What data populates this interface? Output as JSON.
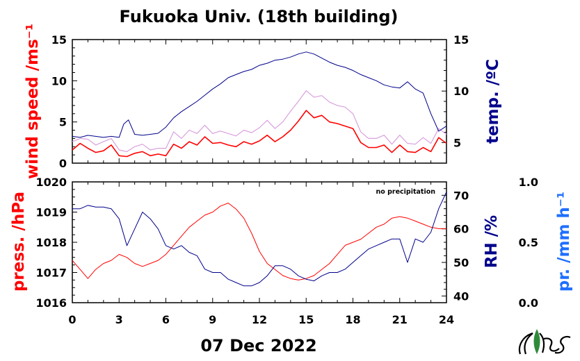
{
  "title": "Fukuoka Univ. (18th building)",
  "date_label": "07 Dec 2022",
  "annotation": "no precipitation",
  "colors": {
    "wind": "#ff0000",
    "gust": "#d9a0dd",
    "temp": "#00008b",
    "pressure": "#ff0000",
    "rh": "#00008b",
    "precip": "#1e6fff"
  },
  "chart_data": [
    {
      "type": "line",
      "panel": "top",
      "xlabel": "",
      "xlim": [
        0,
        24
      ],
      "xticks": [
        "0",
        "3",
        "6",
        "9",
        "12",
        "15",
        "18",
        "21",
        "24"
      ],
      "left_axis": {
        "label": "wind speed /ms⁻¹",
        "ylim": [
          0,
          15
        ],
        "ticks": [
          "0",
          "5",
          "10",
          "15"
        ]
      },
      "right_axis": {
        "label": "temp. /ºC",
        "ylim": [
          3,
          15
        ],
        "ticks": [
          "5",
          "10",
          "15"
        ]
      },
      "series": [
        {
          "axis": "left",
          "role": "wind",
          "x": [
            0,
            0.5,
            1,
            1.5,
            2,
            2.5,
            3,
            3.5,
            4,
            4.5,
            5,
            5.5,
            6,
            6.5,
            7,
            7.5,
            8,
            8.5,
            9,
            9.5,
            10,
            10.5,
            11,
            11.5,
            12,
            12.5,
            13,
            13.5,
            14,
            14.5,
            15,
            15.5,
            16,
            16.5,
            17,
            17.5,
            18,
            18.5,
            19,
            19.5,
            20,
            20.5,
            21,
            21.5,
            22,
            22.5,
            23,
            23.5,
            24
          ],
          "values": [
            1.6,
            2.4,
            1.8,
            1.3,
            1.5,
            2.2,
            0.9,
            0.8,
            1.2,
            1.4,
            0.9,
            1.1,
            0.9,
            2.3,
            1.8,
            2.6,
            2.2,
            3.2,
            2.4,
            2.5,
            2.2,
            2.0,
            2.6,
            2.3,
            2.7,
            3.4,
            2.6,
            3.2,
            4.0,
            5.1,
            6.4,
            5.5,
            5.8,
            5.0,
            4.8,
            4.5,
            4.2,
            2.5,
            1.9,
            1.9,
            2.2,
            1.3,
            2.2,
            1.4,
            1.3,
            1.9,
            1.4,
            3.1,
            2.4
          ]
        },
        {
          "axis": "left",
          "role": "gust",
          "x": [
            0,
            0.5,
            1,
            1.5,
            2,
            2.5,
            3,
            3.5,
            4,
            4.5,
            5,
            5.5,
            6,
            6.5,
            7,
            7.5,
            8,
            8.5,
            9,
            9.5,
            10,
            10.5,
            11,
            11.5,
            12,
            12.5,
            13,
            13.5,
            14,
            14.5,
            15,
            15.5,
            16,
            16.5,
            17,
            17.5,
            18,
            18.5,
            19,
            19.5,
            20,
            20.5,
            21,
            21.5,
            22,
            22.5,
            23,
            23.5,
            24
          ],
          "values": [
            2.6,
            3.0,
            2.9,
            2.2,
            2.6,
            3.0,
            1.6,
            1.4,
            2.0,
            2.3,
            1.6,
            1.8,
            1.8,
            3.8,
            3.0,
            4.0,
            3.6,
            4.6,
            3.6,
            3.9,
            3.6,
            3.3,
            4.0,
            3.7,
            4.3,
            5.2,
            4.2,
            5.0,
            6.3,
            7.5,
            8.8,
            8.0,
            8.2,
            7.4,
            7.0,
            6.8,
            6.0,
            3.8,
            3.0,
            3.0,
            3.4,
            2.3,
            3.4,
            2.4,
            2.3,
            3.1,
            2.4,
            4.2,
            3.5
          ]
        },
        {
          "axis": "right",
          "role": "temp",
          "x": [
            0,
            0.5,
            1,
            1.5,
            2,
            2.5,
            3,
            3.3,
            3.6,
            4,
            4.5,
            5,
            5.5,
            6,
            6.5,
            7,
            7.5,
            8,
            8.5,
            9,
            9.5,
            10,
            10.5,
            11,
            11.5,
            12,
            12.5,
            13,
            13.5,
            14,
            14.5,
            15,
            15.5,
            16,
            16.5,
            17,
            17.5,
            18,
            18.5,
            19,
            19.5,
            20,
            20.5,
            21,
            21.5,
            22,
            22.5,
            23,
            23.5,
            24
          ],
          "values": [
            5.6,
            5.5,
            5.7,
            5.6,
            5.5,
            5.6,
            5.5,
            6.8,
            7.2,
            5.8,
            5.7,
            5.8,
            5.9,
            6.5,
            7.4,
            8.0,
            8.5,
            9.0,
            9.6,
            10.2,
            10.7,
            11.3,
            11.6,
            11.9,
            12.1,
            12.5,
            12.7,
            13.0,
            13.1,
            13.3,
            13.6,
            13.8,
            13.6,
            13.2,
            12.8,
            12.5,
            12.3,
            12.0,
            11.6,
            11.3,
            11.0,
            10.6,
            10.4,
            10.3,
            10.9,
            10.2,
            9.8,
            7.8,
            6.1,
            6.6
          ]
        }
      ]
    },
    {
      "type": "line",
      "panel": "bottom",
      "xlabel": "07 Dec 2022",
      "xlim": [
        0,
        24
      ],
      "xticks": [
        "0",
        "3",
        "6",
        "9",
        "12",
        "15",
        "18",
        "21",
        "24"
      ],
      "left_axis": {
        "label": "press. /hPa",
        "ylim": [
          1016,
          1020
        ],
        "ticks": [
          "1016",
          "1017",
          "1018",
          "1019",
          "1020"
        ]
      },
      "right_axis": {
        "label": "RH /%",
        "ylim": [
          38,
          74
        ],
        "ticks": [
          "40",
          "50",
          "60",
          "70"
        ]
      },
      "precip_axis": {
        "label": "pr. /mm h⁻¹",
        "ylim": [
          0,
          1
        ],
        "ticks": [
          "0.0",
          "0.5",
          "1.0"
        ]
      },
      "series": [
        {
          "axis": "left",
          "role": "pressure",
          "x": [
            0,
            0.5,
            1,
            1.5,
            2,
            2.5,
            3,
            3.5,
            4,
            4.5,
            5,
            5.5,
            6,
            6.5,
            7,
            7.5,
            8,
            8.5,
            9,
            9.5,
            10,
            10.5,
            11,
            11.5,
            12,
            12.5,
            13,
            13.5,
            14,
            14.5,
            15,
            15.5,
            16,
            16.5,
            17,
            17.5,
            18,
            18.5,
            19,
            19.5,
            20,
            20.5,
            21,
            21.5,
            22,
            22.5,
            23,
            23.5,
            24
          ],
          "values": [
            1017.4,
            1017.1,
            1016.8,
            1017.1,
            1017.3,
            1017.4,
            1017.6,
            1017.5,
            1017.3,
            1017.2,
            1017.3,
            1017.4,
            1017.6,
            1017.9,
            1018.2,
            1018.5,
            1018.7,
            1018.9,
            1019.0,
            1019.2,
            1019.3,
            1019.1,
            1018.8,
            1018.3,
            1017.7,
            1017.3,
            1017.1,
            1016.9,
            1016.8,
            1016.75,
            1016.8,
            1016.9,
            1017.1,
            1017.3,
            1017.6,
            1017.9,
            1018.0,
            1018.1,
            1018.3,
            1018.5,
            1018.6,
            1018.8,
            1018.85,
            1018.8,
            1018.7,
            1018.6,
            1018.5,
            1018.45,
            1018.45
          ]
        },
        {
          "axis": "right",
          "role": "rh",
          "x": [
            0,
            0.5,
            1,
            1.5,
            2,
            2.5,
            3,
            3.5,
            4,
            4.5,
            5,
            5.5,
            6,
            6.5,
            7,
            7.5,
            8,
            8.5,
            9,
            9.5,
            10,
            10.5,
            11,
            11.5,
            12,
            12.5,
            13,
            13.5,
            14,
            14.5,
            15,
            15.5,
            16,
            16.5,
            17,
            17.5,
            18,
            18.5,
            19,
            19.5,
            20,
            20.5,
            21,
            21.5,
            22,
            22.5,
            23,
            23.5,
            24
          ],
          "values": [
            66,
            66,
            67,
            66.5,
            66.5,
            66,
            63,
            55,
            60,
            65,
            63,
            60,
            55,
            54,
            55,
            53,
            52,
            48,
            47,
            47,
            45,
            44,
            43,
            43,
            44,
            46,
            49,
            49,
            48,
            46,
            45,
            44.5,
            46,
            47,
            47,
            48,
            50,
            52,
            54,
            55,
            56,
            57,
            57,
            50,
            57,
            56,
            59,
            66,
            71
          ]
        }
      ]
    }
  ]
}
